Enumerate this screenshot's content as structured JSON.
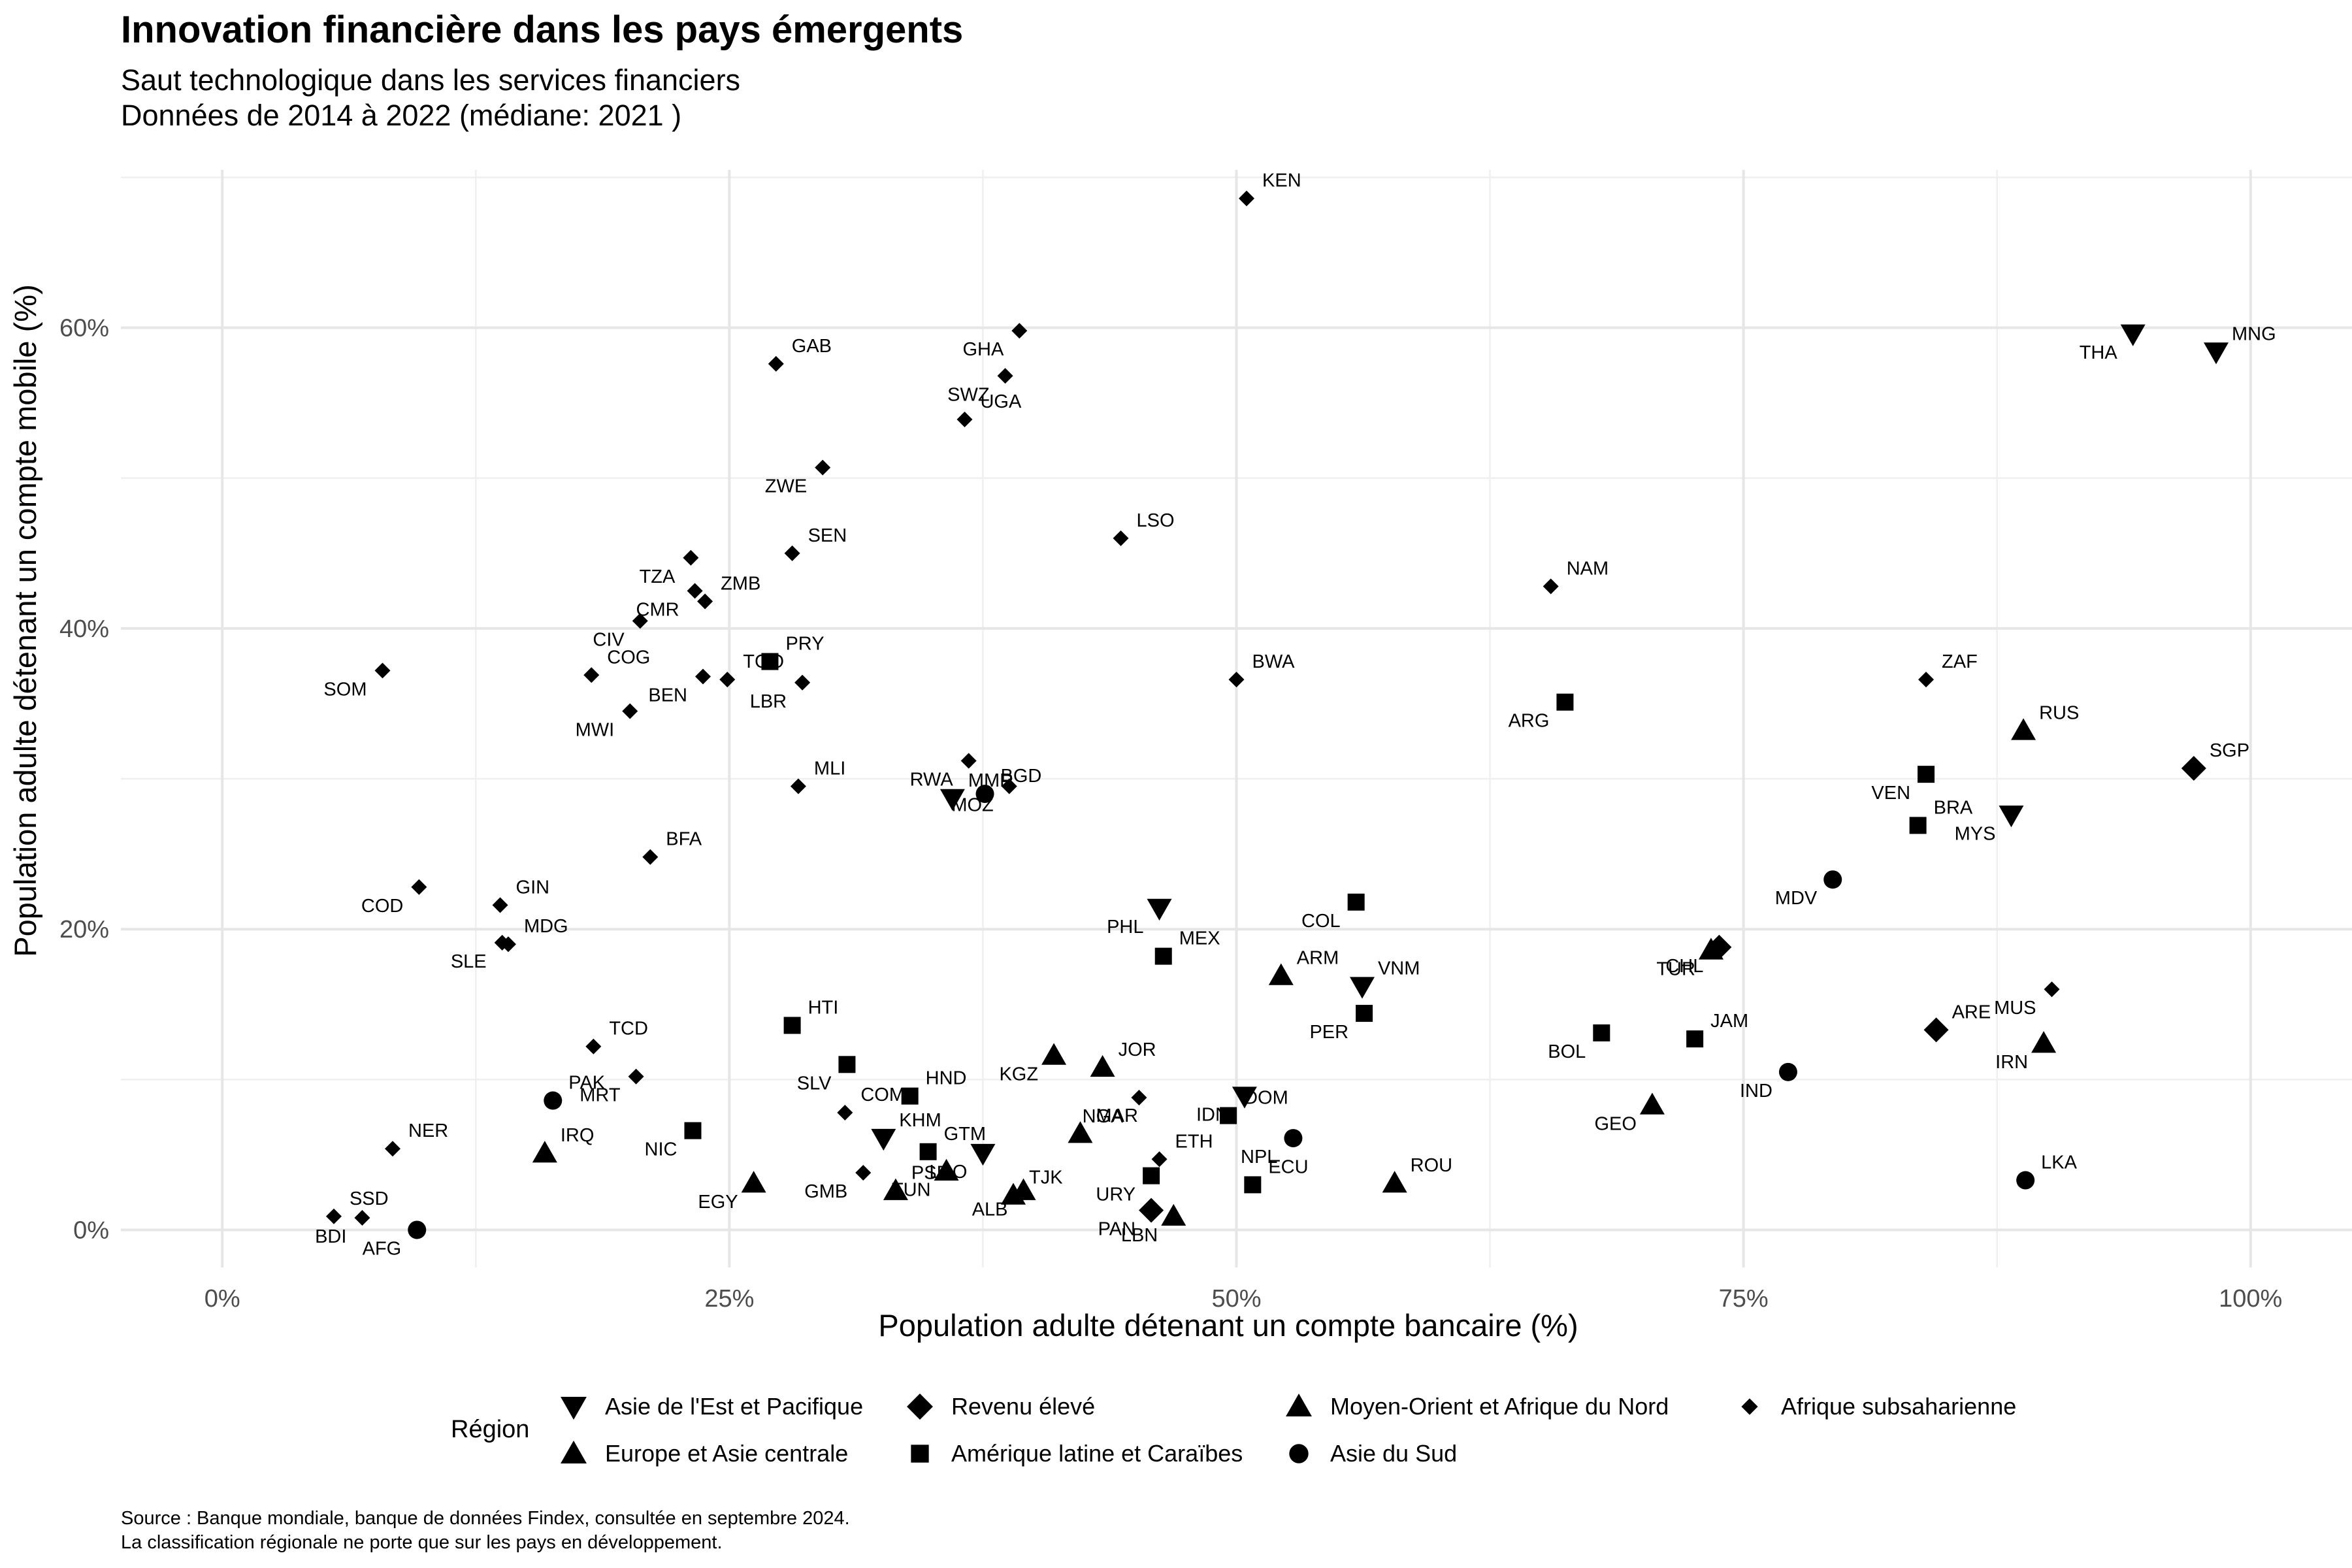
{
  "title": "Innovation financière dans les pays émergents",
  "subtitle_line1": "Saut technologique dans les services financiers",
  "subtitle_line2": "Données de 2014 à 2022 (médiane: 2021 )",
  "caption_line1": "Source : Banque mondiale, banque de données Findex, consultée en septembre 2024.",
  "caption_line2": "La classification régionale ne porte que sur les pays en développement.",
  "chart_data": {
    "type": "scatter",
    "xlabel": "Population adulte détenant un compte bancaire (%)",
    "ylabel": "Population adulte détenant un compte mobile (%)",
    "xlim": [
      -5,
      105
    ],
    "ylim": [
      -2.5,
      70.5
    ],
    "x_ticks": [
      0,
      25,
      50,
      75,
      100
    ],
    "x_tick_labels": [
      "0%",
      "25%",
      "50%",
      "75%",
      "100%"
    ],
    "y_ticks": [
      0,
      20,
      40,
      60
    ],
    "y_tick_labels": [
      "0%",
      "20%",
      "40%",
      "60%"
    ],
    "grid": true,
    "legend_title": "Région",
    "legend_position": "bottom",
    "legend": [
      {
        "label": "Asie de l'Est et Pacifique",
        "shape": "triangle-down"
      },
      {
        "label": "Revenu élevé",
        "shape": "diamond"
      },
      {
        "label": "Moyen-Orient et Afrique du Nord",
        "shape": "triangle"
      },
      {
        "label": "Afrique subsaharienne",
        "shape": "diamond-small"
      },
      {
        "label": "Europe et Asie centrale",
        "shape": "triangle"
      },
      {
        "label": "Amérique latine et Caraïbes",
        "shape": "square"
      },
      {
        "label": "Asie du Sud",
        "shape": "circle"
      }
    ],
    "points": [
      {
        "label": "KEN",
        "region": "Afrique subsaharienne",
        "x": 50.5,
        "y": 68.6
      },
      {
        "label": "GHA",
        "region": "Afrique subsaharienne",
        "x": 39.3,
        "y": 59.8
      },
      {
        "label": "GAB",
        "region": "Afrique subsaharienne",
        "x": 27.3,
        "y": 57.6
      },
      {
        "label": "SWZ",
        "region": "Afrique subsaharienne",
        "x": 38.6,
        "y": 56.8
      },
      {
        "label": "UGA",
        "region": "Afrique subsaharienne",
        "x": 36.6,
        "y": 53.9
      },
      {
        "label": "ZWE",
        "region": "Afrique subsaharienne",
        "x": 29.6,
        "y": 50.7
      },
      {
        "label": "LSO",
        "region": "Afrique subsaharienne",
        "x": 44.3,
        "y": 46.0
      },
      {
        "label": "TZA",
        "region": "Afrique subsaharienne",
        "x": 23.1,
        "y": 44.7
      },
      {
        "label": "SEN",
        "region": "Afrique subsaharienne",
        "x": 28.1,
        "y": 45.0
      },
      {
        "label": "CMR",
        "region": "Afrique subsaharienne",
        "x": 23.3,
        "y": 42.5
      },
      {
        "label": "ZMB",
        "region": "Afrique subsaharienne",
        "x": 23.8,
        "y": 41.8
      },
      {
        "label": "CIV",
        "region": "Afrique subsaharienne",
        "x": 20.6,
        "y": 40.5
      },
      {
        "label": "NAM",
        "region": "Afrique subsaharienne",
        "x": 65.5,
        "y": 42.8
      },
      {
        "label": "SOM",
        "region": "Afrique subsaharienne",
        "x": 7.9,
        "y": 37.2
      },
      {
        "label": "COG",
        "region": "Afrique subsaharienne",
        "x": 18.2,
        "y": 36.9
      },
      {
        "label": "BEN",
        "region": "Afrique subsaharienne",
        "x": 23.7,
        "y": 36.8
      },
      {
        "label": "TGO",
        "region": "Afrique subsaharienne",
        "x": 24.9,
        "y": 36.6
      },
      {
        "label": "LBR",
        "region": "Afrique subsaharienne",
        "x": 28.6,
        "y": 36.4
      },
      {
        "label": "BWA",
        "region": "Afrique subsaharienne",
        "x": 50.0,
        "y": 36.6
      },
      {
        "label": "MWI",
        "region": "Afrique subsaharienne",
        "x": 20.1,
        "y": 34.5
      },
      {
        "label": "ZAF",
        "region": "Afrique subsaharienne",
        "x": 84.0,
        "y": 36.6
      },
      {
        "label": "RWA",
        "region": "Afrique subsaharienne",
        "x": 36.8,
        "y": 31.2
      },
      {
        "label": "MLI",
        "region": "Afrique subsaharienne",
        "x": 28.4,
        "y": 29.5
      },
      {
        "label": "MOZ",
        "region": "Afrique subsaharienne",
        "x": 38.8,
        "y": 29.5
      },
      {
        "label": "BFA",
        "region": "Afrique subsaharienne",
        "x": 21.1,
        "y": 24.8
      },
      {
        "label": "COD",
        "region": "Afrique subsaharienne",
        "x": 9.7,
        "y": 22.8
      },
      {
        "label": "GIN",
        "region": "Afrique subsaharienne",
        "x": 13.7,
        "y": 21.6
      },
      {
        "label": "SLE",
        "region": "Afrique subsaharienne",
        "x": 13.8,
        "y": 19.1
      },
      {
        "label": "MDG",
        "region": "Afrique subsaharienne",
        "x": 14.1,
        "y": 19.0
      },
      {
        "label": "MUS",
        "region": "Afrique subsaharienne",
        "x": 90.2,
        "y": 16.0
      },
      {
        "label": "TCD",
        "region": "Afrique subsaharienne",
        "x": 18.3,
        "y": 12.2
      },
      {
        "label": "MRT",
        "region": "Afrique subsaharienne",
        "x": 20.4,
        "y": 10.2
      },
      {
        "label": "COM",
        "region": "Afrique subsaharienne",
        "x": 30.7,
        "y": 7.8
      },
      {
        "label": "NGA",
        "region": "Afrique subsaharienne",
        "x": 45.2,
        "y": 8.8
      },
      {
        "label": "ETH",
        "region": "Afrique subsaharienne",
        "x": 46.2,
        "y": 4.7
      },
      {
        "label": "GMB",
        "region": "Afrique subsaharienne",
        "x": 31.6,
        "y": 3.8
      },
      {
        "label": "NER",
        "region": "Afrique subsaharienne",
        "x": 8.4,
        "y": 5.4
      },
      {
        "label": "BDI",
        "region": "Afrique subsaharienne",
        "x": 6.9,
        "y": 0.8
      },
      {
        "label": "SSD",
        "region": "Afrique subsaharienne",
        "x": 5.5,
        "y": 0.9
      },
      {
        "label": "THA",
        "region": "Asie de l'Est et Pacifique",
        "x": 94.2,
        "y": 59.6
      },
      {
        "label": "MNG",
        "region": "Asie de l'Est et Pacifique",
        "x": 98.3,
        "y": 58.4
      },
      {
        "label": "MYS",
        "region": "Asie de l'Est et Pacifique",
        "x": 88.2,
        "y": 27.6
      },
      {
        "label": "MMR",
        "region": "Asie de l'Est et Pacifique",
        "x": 36.0,
        "y": 28.7
      },
      {
        "label": "PHL",
        "region": "Asie de l'Est et Pacifique",
        "x": 46.2,
        "y": 21.4
      },
      {
        "label": "VNM",
        "region": "Asie de l'Est et Pacifique",
        "x": 56.2,
        "y": 16.2
      },
      {
        "label": "IDN",
        "region": "Asie de l'Est et Pacifique",
        "x": 50.4,
        "y": 8.9
      },
      {
        "label": "KHM",
        "region": "Asie de l'Est et Pacifique",
        "x": 32.6,
        "y": 6.1
      },
      {
        "label": "LAO",
        "region": "Asie de l'Est et Pacifique",
        "x": 37.5,
        "y": 5.1
      },
      {
        "label": "SGP",
        "region": "Revenu élevé",
        "x": 97.2,
        "y": 30.7
      },
      {
        "label": "CHL",
        "region": "Revenu élevé",
        "x": 73.8,
        "y": 18.8
      },
      {
        "label": "ARE",
        "region": "Revenu élevé",
        "x": 84.5,
        "y": 13.3
      },
      {
        "label": "PAN",
        "region": "Revenu élevé",
        "x": 45.8,
        "y": 1.3
      },
      {
        "label": "RUS",
        "region": "Europe et Asie centrale",
        "x": 88.8,
        "y": 33.2
      },
      {
        "label": "TUR",
        "region": "Europe et Asie centrale",
        "x": 73.4,
        "y": 18.6
      },
      {
        "label": "ARM",
        "region": "Europe et Asie centrale",
        "x": 52.2,
        "y": 16.9
      },
      {
        "label": "KGZ",
        "region": "Europe et Asie centrale",
        "x": 41.0,
        "y": 11.6
      },
      {
        "label": "JOR",
        "region": "Moyen-Orient et Afrique du Nord",
        "x": 43.4,
        "y": 10.8
      },
      {
        "label": "GEO",
        "region": "Europe et Asie centrale",
        "x": 70.5,
        "y": 8.3
      },
      {
        "label": "MAR",
        "region": "Moyen-Orient et Afrique du Nord",
        "x": 42.3,
        "y": 6.4
      },
      {
        "label": "IRN",
        "region": "Moyen-Orient et Afrique du Nord",
        "x": 89.8,
        "y": 12.4
      },
      {
        "label": "IRQ",
        "region": "Moyen-Orient et Afrique du Nord",
        "x": 15.9,
        "y": 5.1
      },
      {
        "label": "EGY",
        "region": "Moyen-Orient et Afrique du Nord",
        "x": 26.2,
        "y": 3.1
      },
      {
        "label": "GTM",
        "region": "Amérique latine et Caraïbes",
        "x": 34.8,
        "y": 5.2
      },
      {
        "label": "TUN",
        "region": "Moyen-Orient et Afrique du Nord",
        "x": 35.7,
        "y": 3.9
      },
      {
        "label": "PSE",
        "region": "Moyen-Orient et Afrique du Nord",
        "x": 33.2,
        "y": 2.6
      },
      {
        "label": "ALB",
        "region": "Europe et Asie centrale",
        "x": 39.5,
        "y": 2.6
      },
      {
        "label": "TJK",
        "region": "Europe et Asie centrale",
        "x": 39.0,
        "y": 2.3
      },
      {
        "label": "LBN",
        "region": "Moyen-Orient et Afrique du Nord",
        "x": 46.9,
        "y": 0.9
      },
      {
        "label": "ROU",
        "region": "Europe et Asie centrale",
        "x": 57.8,
        "y": 3.1
      },
      {
        "label": "ARG",
        "region": "Amérique latine et Caraïbes",
        "x": 66.2,
        "y": 35.1
      },
      {
        "label": "PRY",
        "region": "Amérique latine et Caraïbes",
        "x": 27.0,
        "y": 37.8
      },
      {
        "label": "VEN",
        "region": "Amérique latine et Caraïbes",
        "x": 84.0,
        "y": 30.3
      },
      {
        "label": "BRA",
        "region": "Amérique latine et Caraïbes",
        "x": 83.6,
        "y": 26.9
      },
      {
        "label": "COL",
        "region": "Amérique latine et Caraïbes",
        "x": 55.9,
        "y": 21.8
      },
      {
        "label": "MEX",
        "region": "Amérique latine et Caraïbes",
        "x": 46.4,
        "y": 18.2
      },
      {
        "label": "PER",
        "region": "Amérique latine et Caraïbes",
        "x": 56.3,
        "y": 14.4
      },
      {
        "label": "HTI",
        "region": "Amérique latine et Caraïbes",
        "x": 28.1,
        "y": 13.6
      },
      {
        "label": "SLV",
        "region": "Amérique latine et Caraïbes",
        "x": 30.8,
        "y": 11.0
      },
      {
        "label": "HND",
        "region": "Amérique latine et Caraïbes",
        "x": 33.9,
        "y": 8.9
      },
      {
        "label": "BOL",
        "region": "Amérique latine et Caraïbes",
        "x": 68.0,
        "y": 13.1
      },
      {
        "label": "JAM",
        "region": "Amérique latine et Caraïbes",
        "x": 72.6,
        "y": 12.7
      },
      {
        "label": "NIC",
        "region": "Amérique latine et Caraïbes",
        "x": 23.2,
        "y": 6.6
      },
      {
        "label": "DOM",
        "region": "Amérique latine et Caraïbes",
        "x": 49.6,
        "y": 7.6
      },
      {
        "label": "URY",
        "region": "Amérique latine et Caraïbes",
        "x": 45.8,
        "y": 3.6
      },
      {
        "label": "ECU",
        "region": "Amérique latine et Caraïbes",
        "x": 50.8,
        "y": 3.0
      },
      {
        "label": "MDV",
        "region": "Asie du Sud",
        "x": 79.4,
        "y": 23.3
      },
      {
        "label": "BGD",
        "region": "Asie du Sud",
        "x": 37.6,
        "y": 29.0
      },
      {
        "label": "IND",
        "region": "Asie du Sud",
        "x": 77.2,
        "y": 10.5
      },
      {
        "label": "PAK",
        "region": "Asie du Sud",
        "x": 16.3,
        "y": 8.6
      },
      {
        "label": "NPL",
        "region": "Asie du Sud",
        "x": 52.8,
        "y": 6.1
      },
      {
        "label": "LKA",
        "region": "Asie du Sud",
        "x": 88.9,
        "y": 3.3
      },
      {
        "label": "AFG",
        "region": "Asie du Sud",
        "x": 9.6,
        "y": 0.0
      }
    ]
  }
}
